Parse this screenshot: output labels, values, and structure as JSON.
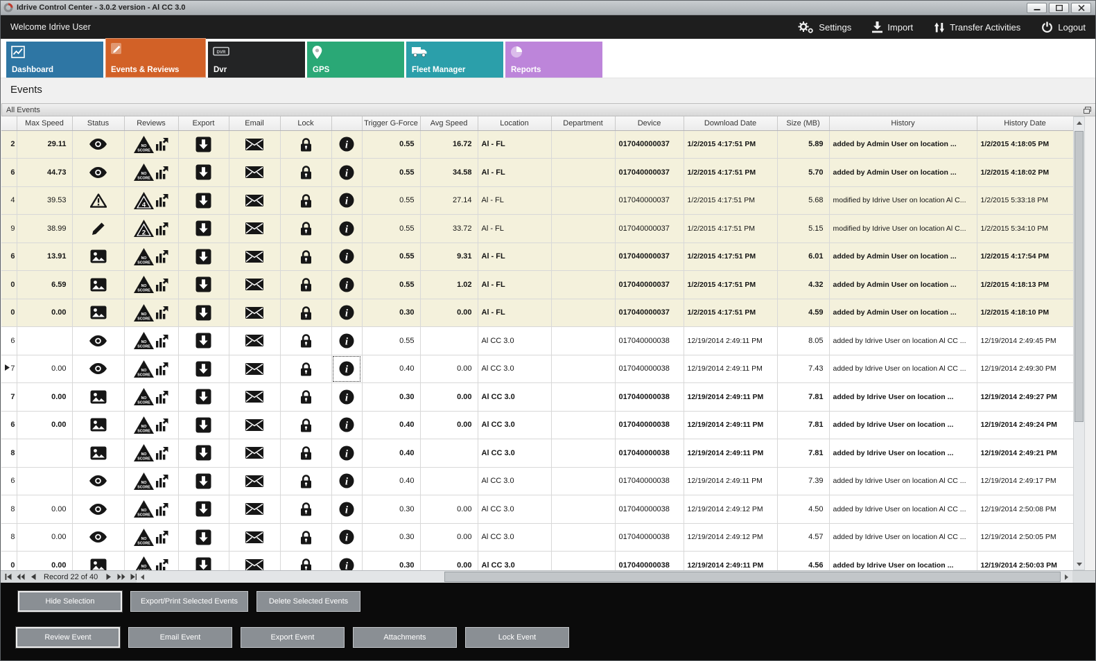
{
  "window": {
    "title": "Idrive Control Center - 3.0.2 version - Al CC 3.0",
    "controls": [
      "minimize",
      "maximize",
      "close"
    ]
  },
  "menubar": {
    "welcome": "Welcome Idrive User",
    "actions": [
      {
        "label": "Settings",
        "icon": "gears-icon"
      },
      {
        "label": "Import",
        "icon": "import-icon"
      },
      {
        "label": "Transfer Activities",
        "icon": "transfer-icon"
      },
      {
        "label": "Logout",
        "icon": "power-icon"
      }
    ]
  },
  "tabs": [
    {
      "label": "Dashboard",
      "color": "#2e76a4",
      "icon": "chart",
      "selected": false
    },
    {
      "label": "Events & Reviews",
      "color": "#d26127",
      "icon": "events",
      "selected": true
    },
    {
      "label": "Dvr",
      "color": "#232425",
      "icon": "dvr",
      "selected": false
    },
    {
      "label": "GPS",
      "color": "#2aa876",
      "icon": "pin",
      "selected": false
    },
    {
      "label": "Fleet Manager",
      "color": "#2b9faa",
      "icon": "truck",
      "selected": false
    },
    {
      "label": "Reports",
      "color": "#bd85da",
      "icon": "pie",
      "selected": false
    }
  ],
  "page_title": "Events",
  "group_title": "All Events",
  "grid": {
    "columns": [
      {
        "key": "edge",
        "label": ""
      },
      {
        "key": "max_speed",
        "label": "Max Speed"
      },
      {
        "key": "status",
        "label": "Status"
      },
      {
        "key": "reviews",
        "label": "Reviews"
      },
      {
        "key": "export",
        "label": "Export"
      },
      {
        "key": "email",
        "label": "Email"
      },
      {
        "key": "lock",
        "label": "Lock"
      },
      {
        "key": "info",
        "label": ""
      },
      {
        "key": "trigger_g_force",
        "label": "Trigger G-Force"
      },
      {
        "key": "avg_speed",
        "label": "Avg Speed"
      },
      {
        "key": "location",
        "label": "Location"
      },
      {
        "key": "department",
        "label": "Department"
      },
      {
        "key": "device",
        "label": "Device"
      },
      {
        "key": "download_date",
        "label": "Download Date"
      },
      {
        "key": "size_mb",
        "label": "Size (MB)"
      },
      {
        "key": "history",
        "label": "History"
      },
      {
        "key": "history_date",
        "label": "History Date"
      }
    ],
    "rows": [
      {
        "edge": "2",
        "max_speed": "29.11",
        "status": "eye",
        "review_score": "NO SCORE",
        "trigger_g_force": "0.55",
        "avg_speed": "16.72",
        "location": "Al - FL",
        "department": "",
        "device": "017040000037",
        "download_date": "1/2/2015 4:17:51 PM",
        "size_mb": "5.89",
        "history": "added by Admin User on location ...",
        "history_date": "1/2/2015 4:18:05 PM",
        "bold": true,
        "highlighted": true,
        "current": false
      },
      {
        "edge": "6",
        "max_speed": "44.73",
        "status": "eye",
        "review_score": "NO SCORE",
        "trigger_g_force": "0.55",
        "avg_speed": "34.58",
        "location": "Al - FL",
        "department": "",
        "device": "017040000037",
        "download_date": "1/2/2015 4:17:51 PM",
        "size_mb": "5.70",
        "history": "added by Admin User on location ...",
        "history_date": "1/2/2015 4:18:02 PM",
        "bold": true,
        "highlighted": true,
        "current": false
      },
      {
        "edge": "4",
        "max_speed": "39.53",
        "status": "warning",
        "review_score": "4",
        "trigger_g_force": "0.55",
        "avg_speed": "27.14",
        "location": "Al - FL",
        "department": "",
        "device": "017040000037",
        "download_date": "1/2/2015 4:17:51 PM",
        "size_mb": "5.68",
        "history": "modified by Idrive User on location Al C...",
        "history_date": "1/2/2015 5:33:18 PM",
        "bold": false,
        "highlighted": true,
        "current": false
      },
      {
        "edge": "9",
        "max_speed": "38.99",
        "status": "pencil",
        "review_score": "2",
        "trigger_g_force": "0.55",
        "avg_speed": "33.72",
        "location": "Al - FL",
        "department": "",
        "device": "017040000037",
        "download_date": "1/2/2015 4:17:51 PM",
        "size_mb": "5.15",
        "history": "modified by Idrive User on location Al C...",
        "history_date": "1/2/2015 5:34:10 PM",
        "bold": false,
        "highlighted": true,
        "current": false
      },
      {
        "edge": "6",
        "max_speed": "13.91",
        "status": "image",
        "review_score": "NO SCORE",
        "trigger_g_force": "0.55",
        "avg_speed": "9.31",
        "location": "Al - FL",
        "department": "",
        "device": "017040000037",
        "download_date": "1/2/2015 4:17:51 PM",
        "size_mb": "6.01",
        "history": "added by Admin User on location ...",
        "history_date": "1/2/2015 4:17:54 PM",
        "bold": true,
        "highlighted": true,
        "current": false
      },
      {
        "edge": "0",
        "max_speed": "6.59",
        "status": "image",
        "review_score": "NO SCORE",
        "trigger_g_force": "0.55",
        "avg_speed": "1.02",
        "location": "Al - FL",
        "department": "",
        "device": "017040000037",
        "download_date": "1/2/2015 4:17:51 PM",
        "size_mb": "4.32",
        "history": "added by Admin User on location ...",
        "history_date": "1/2/2015 4:18:13 PM",
        "bold": true,
        "highlighted": true,
        "current": false
      },
      {
        "edge": "0",
        "max_speed": "0.00",
        "status": "image",
        "review_score": "NO SCORE",
        "trigger_g_force": "0.30",
        "avg_speed": "0.00",
        "location": "Al - FL",
        "department": "",
        "device": "017040000037",
        "download_date": "1/2/2015 4:17:51 PM",
        "size_mb": "4.59",
        "history": "added by Admin User on location ...",
        "history_date": "1/2/2015 4:18:10 PM",
        "bold": true,
        "highlighted": true,
        "current": false
      },
      {
        "edge": "6",
        "max_speed": "",
        "status": "eye",
        "review_score": "NO SCORE",
        "trigger_g_force": "0.55",
        "avg_speed": "",
        "location": "Al CC 3.0",
        "department": "",
        "device": "017040000038",
        "download_date": "12/19/2014 2:49:11 PM",
        "size_mb": "8.05",
        "history": "added by Idrive User on location Al CC ...",
        "history_date": "12/19/2014 2:49:45 PM",
        "bold": false,
        "highlighted": false,
        "current": false
      },
      {
        "edge": "7",
        "max_speed": "0.00",
        "status": "eye",
        "review_score": "NO SCORE",
        "trigger_g_force": "0.40",
        "avg_speed": "0.00",
        "location": "Al CC 3.0",
        "department": "",
        "device": "017040000038",
        "download_date": "12/19/2014 2:49:11 PM",
        "size_mb": "7.43",
        "history": "added by Idrive User on location Al CC ...",
        "history_date": "12/19/2014 2:49:30 PM",
        "bold": false,
        "highlighted": false,
        "current": true
      },
      {
        "edge": "7",
        "max_speed": "0.00",
        "status": "image",
        "review_score": "NO SCORE",
        "trigger_g_force": "0.30",
        "avg_speed": "0.00",
        "location": "Al CC 3.0",
        "department": "",
        "device": "017040000038",
        "download_date": "12/19/2014 2:49:11 PM",
        "size_mb": "7.81",
        "history": "added by Idrive User on location ...",
        "history_date": "12/19/2014 2:49:27 PM",
        "bold": true,
        "highlighted": false,
        "current": false
      },
      {
        "edge": "6",
        "max_speed": "0.00",
        "status": "image",
        "review_score": "NO SCORE",
        "trigger_g_force": "0.40",
        "avg_speed": "0.00",
        "location": "Al CC 3.0",
        "department": "",
        "device": "017040000038",
        "download_date": "12/19/2014 2:49:11 PM",
        "size_mb": "7.81",
        "history": "added by Idrive User on location ...",
        "history_date": "12/19/2014 2:49:24 PM",
        "bold": true,
        "highlighted": false,
        "current": false
      },
      {
        "edge": "8",
        "max_speed": "",
        "status": "image",
        "review_score": "NO SCORE",
        "trigger_g_force": "0.40",
        "avg_speed": "",
        "location": "Al CC 3.0",
        "department": "",
        "device": "017040000038",
        "download_date": "12/19/2014 2:49:11 PM",
        "size_mb": "7.81",
        "history": "added by Idrive User on location ...",
        "history_date": "12/19/2014 2:49:21 PM",
        "bold": true,
        "highlighted": false,
        "current": false
      },
      {
        "edge": "6",
        "max_speed": "",
        "status": "eye",
        "review_score": "NO SCORE",
        "trigger_g_force": "0.40",
        "avg_speed": "",
        "location": "Al CC 3.0",
        "department": "",
        "device": "017040000038",
        "download_date": "12/19/2014 2:49:11 PM",
        "size_mb": "7.39",
        "history": "added by Idrive User on location Al CC ...",
        "history_date": "12/19/2014 2:49:17 PM",
        "bold": false,
        "highlighted": false,
        "current": false
      },
      {
        "edge": "8",
        "max_speed": "0.00",
        "status": "eye",
        "review_score": "NO SCORE",
        "trigger_g_force": "0.30",
        "avg_speed": "0.00",
        "location": "Al CC 3.0",
        "department": "",
        "device": "017040000038",
        "download_date": "12/19/2014 2:49:12 PM",
        "size_mb": "4.50",
        "history": "added by Idrive User on location Al CC ...",
        "history_date": "12/19/2014 2:50:08 PM",
        "bold": false,
        "highlighted": false,
        "current": false
      },
      {
        "edge": "8",
        "max_speed": "0.00",
        "status": "eye",
        "review_score": "NO SCORE",
        "trigger_g_force": "0.30",
        "avg_speed": "0.00",
        "location": "Al CC 3.0",
        "department": "",
        "device": "017040000038",
        "download_date": "12/19/2014 2:49:12 PM",
        "size_mb": "4.57",
        "history": "added by Idrive User on location Al CC ...",
        "history_date": "12/19/2014 2:50:05 PM",
        "bold": false,
        "highlighted": false,
        "current": false
      },
      {
        "edge": "0",
        "max_speed": "0.00",
        "status": "image",
        "review_score": "NO SCORE",
        "trigger_g_force": "0.30",
        "avg_speed": "0.00",
        "location": "Al CC 3.0",
        "department": "",
        "device": "017040000038",
        "download_date": "12/19/2014 2:49:11 PM",
        "size_mb": "4.56",
        "history": "added by Idrive User on location ...",
        "history_date": "12/19/2014 2:50:03 PM",
        "bold": true,
        "highlighted": false,
        "current": false
      }
    ]
  },
  "navigator": {
    "buttons_left": [
      "first",
      "prev-page",
      "prev"
    ],
    "record_text": "Record 22 of 40",
    "buttons_right": [
      "next",
      "next-page",
      "last",
      "end"
    ]
  },
  "footer": {
    "row1": [
      {
        "label": "Hide Selection",
        "focused": true
      },
      {
        "label": "Export/Print Selected Events",
        "focused": false
      },
      {
        "label": "Delete Selected  Events",
        "focused": false
      }
    ],
    "row2": [
      {
        "label": "Review Event",
        "focused": true
      },
      {
        "label": "Email Event",
        "focused": false
      },
      {
        "label": "Export Event",
        "focused": false
      },
      {
        "label": "Attachments",
        "focused": false
      },
      {
        "label": "Lock Event",
        "focused": false
      }
    ]
  }
}
